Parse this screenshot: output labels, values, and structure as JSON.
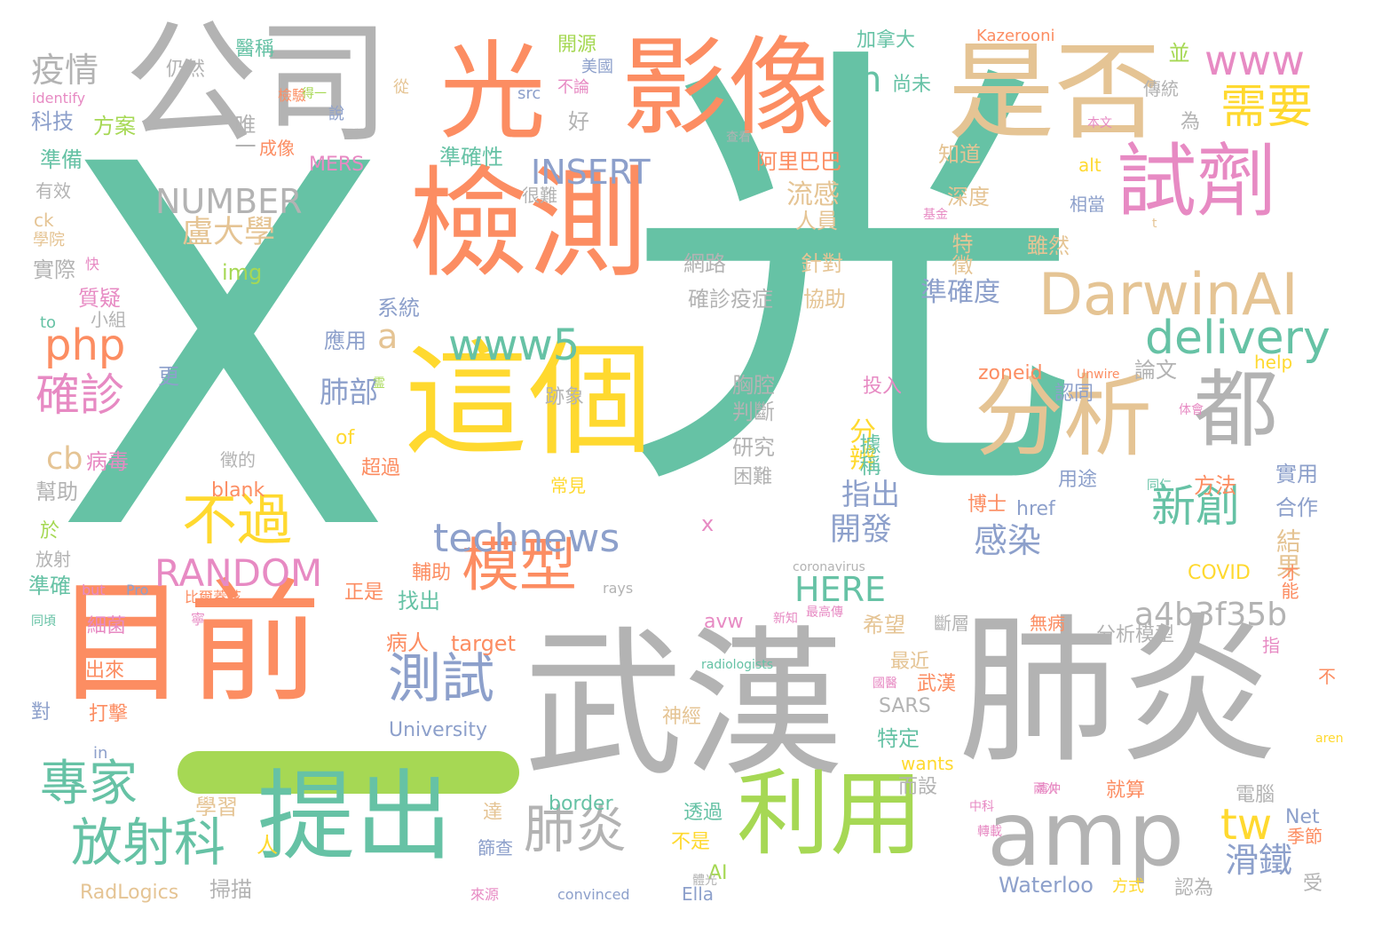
{
  "palette": {
    "teal": "#66c2a5",
    "orange": "#fc8d62",
    "blue": "#8da0cb",
    "pink": "#e78ac3",
    "lime": "#a6d854",
    "yellow": "#ffd92f",
    "tan": "#e5c494",
    "gray": "#b3b3b3"
  },
  "words": [
    {
      "t": "X",
      "c": "teal"
    },
    {
      "t": "光",
      "c": "teal"
    },
    {
      "t": "武漢",
      "c": "gray"
    },
    {
      "t": "肺炎",
      "c": "gray"
    },
    {
      "t": "公司",
      "c": "gray"
    },
    {
      "t": "光",
      "c": "orange"
    },
    {
      "t": "影像",
      "c": "orange"
    },
    {
      "t": "是否",
      "c": "tan"
    },
    {
      "t": "這個",
      "c": "yellow"
    },
    {
      "t": "檢測",
      "c": "orange"
    },
    {
      "t": "目前",
      "c": "orange"
    },
    {
      "t": "提出",
      "c": "teal"
    },
    {
      "t": "利用",
      "c": "lime"
    },
    {
      "t": "amp",
      "c": "gray"
    },
    {
      "t": "分析",
      "c": "tan"
    },
    {
      "t": "都",
      "c": "gray"
    },
    {
      "t": "試劑",
      "c": "pink"
    },
    {
      "t": "DarwinAI",
      "c": "tan"
    },
    {
      "t": "需要",
      "c": "yellow"
    },
    {
      "t": "www",
      "c": "pink"
    },
    {
      "t": "delivery",
      "c": "teal"
    },
    {
      "t": "www5",
      "c": "teal"
    },
    {
      "t": "模型",
      "c": "orange"
    },
    {
      "t": "technews",
      "c": "blue"
    },
    {
      "t": "不過",
      "c": "yellow"
    },
    {
      "t": "RANDOM",
      "c": "pink"
    },
    {
      "t": "測試",
      "c": "blue"
    },
    {
      "t": "肺炎",
      "c": "gray"
    },
    {
      "t": "放射科",
      "c": "teal"
    },
    {
      "t": "專家",
      "c": "teal"
    },
    {
      "t": "確診",
      "c": "pink"
    },
    {
      "t": "php",
      "c": "orange"
    },
    {
      "t": "cb",
      "c": "tan"
    },
    {
      "t": "新創",
      "c": "teal"
    },
    {
      "t": "a4b3f35b",
      "c": "gray"
    },
    {
      "t": "INSERT",
      "c": "blue"
    },
    {
      "t": "NUMBER",
      "c": "gray"
    },
    {
      "t": "盧大學",
      "c": "tan"
    },
    {
      "t": "疫情",
      "c": "gray"
    },
    {
      "t": "tw",
      "c": "yellow"
    },
    {
      "t": "HERE",
      "c": "teal"
    },
    {
      "t": "a",
      "c": "tan"
    },
    {
      "t": "n",
      "c": "teal"
    },
    {
      "t": "感染",
      "c": "blue"
    },
    {
      "t": "開發",
      "c": "blue"
    },
    {
      "t": "滑鐵",
      "c": "blue"
    },
    {
      "t": "準確度",
      "c": "blue"
    },
    {
      "t": "指出",
      "c": "blue"
    },
    {
      "t": "分辨",
      "c": "yellow"
    },
    {
      "t": "肺部",
      "c": "blue"
    },
    {
      "t": "流感",
      "c": "tan"
    },
    {
      "t": "結果",
      "c": "tan"
    },
    {
      "t": "Waterloo",
      "c": "blue"
    },
    {
      "t": "University",
      "c": "blue"
    },
    {
      "t": "準確性",
      "c": "teal"
    },
    {
      "t": "阿里巴巴",
      "c": "orange"
    },
    {
      "t": "加拿大",
      "c": "teal"
    },
    {
      "t": "Kazerooni",
      "c": "orange"
    },
    {
      "t": "開源",
      "c": "lime"
    },
    {
      "t": "科技",
      "c": "blue"
    },
    {
      "t": "方案",
      "c": "lime"
    },
    {
      "t": "準備",
      "c": "teal"
    },
    {
      "t": "仍然",
      "c": "gray"
    },
    {
      "t": "唯一",
      "c": "gray"
    },
    {
      "t": "醫稱",
      "c": "teal"
    },
    {
      "t": "系統",
      "c": "blue"
    },
    {
      "t": "應用",
      "c": "blue"
    },
    {
      "t": "確診疫症",
      "c": "gray"
    },
    {
      "t": "協助",
      "c": "tan"
    },
    {
      "t": "網路",
      "c": "gray"
    },
    {
      "t": "針對",
      "c": "tan"
    },
    {
      "t": "深度",
      "c": "tan"
    },
    {
      "t": "特徵",
      "c": "tan"
    },
    {
      "t": "知道",
      "c": "tan"
    },
    {
      "t": "雖然",
      "c": "tan"
    },
    {
      "t": "相當",
      "c": "blue"
    },
    {
      "t": "人員",
      "c": "tan"
    },
    {
      "t": "並",
      "c": "lime"
    },
    {
      "t": "傳統",
      "c": "gray"
    },
    {
      "t": "為",
      "c": "gray"
    },
    {
      "t": "尚未",
      "c": "teal"
    },
    {
      "t": "美國",
      "c": "blue"
    },
    {
      "t": "不論",
      "c": "pink"
    },
    {
      "t": "src",
      "c": "blue"
    },
    {
      "t": "好",
      "c": "gray"
    },
    {
      "t": "alt",
      "c": "yellow"
    },
    {
      "t": "MERS",
      "c": "pink"
    },
    {
      "t": "img",
      "c": "lime"
    },
    {
      "t": "質疑",
      "c": "pink"
    },
    {
      "t": "實際",
      "c": "gray"
    },
    {
      "t": "學院",
      "c": "tan"
    },
    {
      "t": "有效",
      "c": "gray"
    },
    {
      "t": "ck",
      "c": "tan"
    },
    {
      "t": "to",
      "c": "teal"
    },
    {
      "t": "小組",
      "c": "gray"
    },
    {
      "t": "更",
      "c": "blue"
    },
    {
      "t": "病毒",
      "c": "pink"
    },
    {
      "t": "幫助",
      "c": "gray"
    },
    {
      "t": "於",
      "c": "lime"
    },
    {
      "t": "放射",
      "c": "gray"
    },
    {
      "t": "準確",
      "c": "teal"
    },
    {
      "t": "跡象",
      "c": "gray"
    },
    {
      "t": "胸腔",
      "c": "gray"
    },
    {
      "t": "判斷",
      "c": "gray"
    },
    {
      "t": "研究",
      "c": "gray"
    },
    {
      "t": "困難",
      "c": "gray"
    },
    {
      "t": "投入",
      "c": "pink"
    },
    {
      "t": "據稱",
      "c": "teal"
    },
    {
      "t": "論文",
      "c": "gray"
    },
    {
      "t": "認同",
      "c": "blue"
    },
    {
      "t": "zoneid",
      "c": "orange"
    },
    {
      "t": "help",
      "c": "yellow"
    },
    {
      "t": "方法",
      "c": "orange"
    },
    {
      "t": "實用",
      "c": "blue"
    },
    {
      "t": "合作",
      "c": "blue"
    },
    {
      "t": "用途",
      "c": "blue"
    },
    {
      "t": "博士",
      "c": "orange"
    },
    {
      "t": "href",
      "c": "blue"
    },
    {
      "t": "COVID",
      "c": "yellow"
    },
    {
      "t": "才能",
      "c": "orange"
    },
    {
      "t": "無病",
      "c": "orange"
    },
    {
      "t": "斷層",
      "c": "gray"
    },
    {
      "t": "分析模型",
      "c": "gray"
    },
    {
      "t": "指",
      "c": "pink"
    },
    {
      "t": "不",
      "c": "orange"
    },
    {
      "t": "希望",
      "c": "tan"
    },
    {
      "t": "最近",
      "c": "tan"
    },
    {
      "t": "武漢",
      "c": "orange"
    },
    {
      "t": "SARS",
      "c": "gray"
    },
    {
      "t": "特定",
      "c": "teal"
    },
    {
      "t": "wants",
      "c": "yellow"
    },
    {
      "t": "而設",
      "c": "gray"
    },
    {
      "t": "達",
      "c": "tan"
    },
    {
      "t": "透過",
      "c": "teal"
    },
    {
      "t": "不是",
      "c": "yellow"
    },
    {
      "t": "AI",
      "c": "lime"
    },
    {
      "t": "Ella",
      "c": "blue"
    },
    {
      "t": "就算",
      "c": "orange"
    },
    {
      "t": "電腦",
      "c": "gray"
    },
    {
      "t": "Net",
      "c": "blue"
    },
    {
      "t": "季節",
      "c": "orange"
    },
    {
      "t": "認為",
      "c": "gray"
    },
    {
      "t": "受",
      "c": "gray"
    },
    {
      "t": "方式",
      "c": "yellow"
    },
    {
      "t": "學習",
      "c": "tan"
    },
    {
      "t": "border",
      "c": "teal"
    },
    {
      "t": "神經",
      "c": "tan"
    },
    {
      "t": "篩查",
      "c": "blue"
    },
    {
      "t": "掃描",
      "c": "gray"
    },
    {
      "t": "RadLogics",
      "c": "tan"
    },
    {
      "t": "convinced",
      "c": "blue"
    },
    {
      "t": "blank",
      "c": "orange"
    },
    {
      "t": "超過",
      "c": "orange"
    },
    {
      "t": "常見",
      "c": "yellow"
    },
    {
      "t": "徵的",
      "c": "gray"
    },
    {
      "t": "of",
      "c": "yellow"
    },
    {
      "t": "病人",
      "c": "orange"
    },
    {
      "t": "target",
      "c": "orange"
    },
    {
      "t": "找出",
      "c": "teal"
    },
    {
      "t": "輔助",
      "c": "orange"
    },
    {
      "t": "正是",
      "c": "orange"
    },
    {
      "t": "avw",
      "c": "pink"
    },
    {
      "t": "rays",
      "c": "gray"
    },
    {
      "t": "x",
      "c": "pink"
    },
    {
      "t": "coronavirus",
      "c": "gray"
    },
    {
      "t": "radiologists",
      "c": "teal"
    },
    {
      "t": "細菌",
      "c": "pink"
    },
    {
      "t": "出來",
      "c": "orange"
    },
    {
      "t": "打擊",
      "c": "orange"
    },
    {
      "t": "對",
      "c": "blue"
    },
    {
      "t": "in",
      "c": "blue"
    },
    {
      "t": "人",
      "c": "yellow"
    },
    {
      "t": "but",
      "c": "pink"
    },
    {
      "t": "Pro",
      "c": "blue"
    },
    {
      "t": "比爾蓋茲",
      "c": "orange"
    },
    {
      "t": "identify",
      "c": "pink"
    },
    {
      "t": "說",
      "c": "blue"
    },
    {
      "t": "成像",
      "c": "orange"
    },
    {
      "t": "從",
      "c": "tan"
    },
    {
      "t": "很難",
      "c": "gray"
    },
    {
      "t": "快",
      "c": "pink"
    },
    {
      "t": "檢驗",
      "c": "orange"
    },
    {
      "t": "本文",
      "c": "pink"
    },
    {
      "t": "Unwire",
      "c": "orange"
    },
    {
      "t": "查看",
      "c": "gray"
    },
    {
      "t": "中科",
      "c": "pink"
    },
    {
      "t": "轉載",
      "c": "pink"
    },
    {
      "t": "兩次",
      "c": "pink"
    },
    {
      "t": "來源",
      "c": "pink"
    },
    {
      "t": "aren",
      "c": "yellow"
    },
    {
      "t": "同頃",
      "c": "teal"
    },
    {
      "t": "同仁",
      "c": "teal"
    },
    {
      "t": "寧",
      "c": "pink"
    },
    {
      "t": "新知",
      "c": "pink"
    },
    {
      "t": "最高傳",
      "c": "pink"
    },
    {
      "t": "國醫",
      "c": "pink"
    },
    {
      "t": "體光",
      "c": "gray"
    },
    {
      "t": "基金",
      "c": "pink"
    },
    {
      "t": "得一",
      "c": "lime"
    },
    {
      "t": "霊",
      "c": "lime"
    },
    {
      "t": "清仲",
      "c": "pink"
    },
    {
      "t": "t",
      "c": "tan"
    },
    {
      "t": "体會",
      "c": "pink"
    }
  ]
}
